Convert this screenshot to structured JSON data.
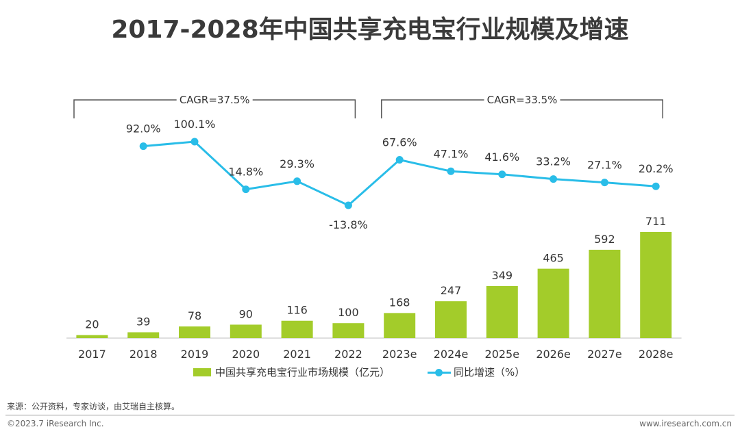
{
  "title": "2017-2028年中国共享充电宝行业规模及增速",
  "chart_data": {
    "type": "bar+line",
    "categories": [
      "2017",
      "2018",
      "2019",
      "2020",
      "2021",
      "2022",
      "2023e",
      "2024e",
      "2025e",
      "2026e",
      "2027e",
      "2028e"
    ],
    "series": [
      {
        "name": "中国共享充电宝行业市场规模（亿元）",
        "type": "bar",
        "color": "#a3cc2a",
        "values": [
          20,
          39,
          78,
          90,
          116,
          100,
          168,
          247,
          349,
          465,
          592,
          711
        ]
      },
      {
        "name": "同比增速（%）",
        "type": "line",
        "color": "#29bde8",
        "values": [
          null,
          92.0,
          100.1,
          14.8,
          29.3,
          -13.8,
          67.6,
          47.1,
          41.6,
          33.2,
          27.1,
          20.2
        ]
      }
    ],
    "data_labels_bar": [
      "20",
      "39",
      "78",
      "90",
      "116",
      "100",
      "168",
      "247",
      "349",
      "465",
      "592",
      "711"
    ],
    "data_labels_line": [
      "",
      "92.0%",
      "100.1%",
      "14.8%",
      "29.3%",
      "-13.8%",
      "67.6%",
      "47.1%",
      "41.6%",
      "33.2%",
      "27.1%",
      "20.2%"
    ],
    "annotations": [
      {
        "text": "CAGR=37.5%",
        "from": "2017",
        "to": "2022"
      },
      {
        "text": "CAGR=33.5%",
        "from": "2023e",
        "to": "2028e"
      }
    ],
    "legend_position": "bottom",
    "grid": false
  },
  "footer": {
    "source": "来源：公开资料，专家访谈，由艾瑞自主核算。",
    "copyright": "©2023.7 iResearch Inc.",
    "website": "www.iresearch.com.cn"
  }
}
